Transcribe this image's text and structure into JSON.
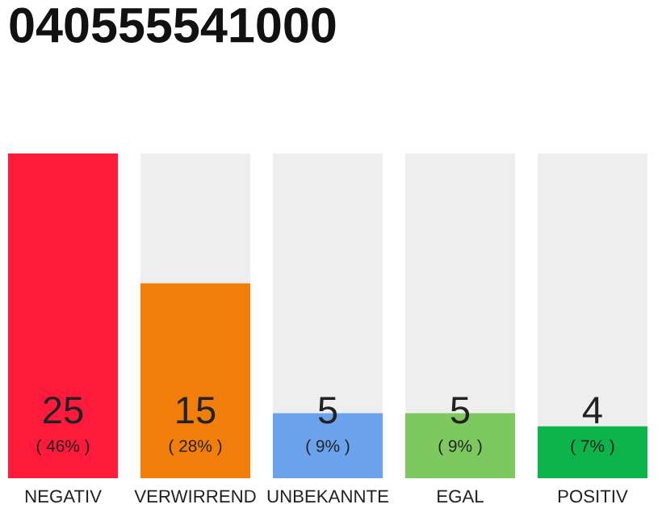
{
  "chart_data": {
    "type": "bar",
    "title": "040555541000",
    "categories": [
      "NEGATIV",
      "VERWIRREND",
      "UNBEKANNTE",
      "EGAL",
      "POSITIV"
    ],
    "values": [
      25,
      15,
      5,
      5,
      4
    ],
    "colors": [
      "#ff1a3c",
      "#f17d0a",
      "#6aa3ec",
      "#7ec95f",
      "#0db34b"
    ],
    "ylim": [
      0,
      25
    ],
    "data_labels": true,
    "grid": false,
    "legend": false,
    "tick_labels": "x",
    "annotations": [
      "( 46% )",
      "( 28% )",
      "( 9% )",
      "( 9% )",
      "( 7% )"
    ]
  }
}
